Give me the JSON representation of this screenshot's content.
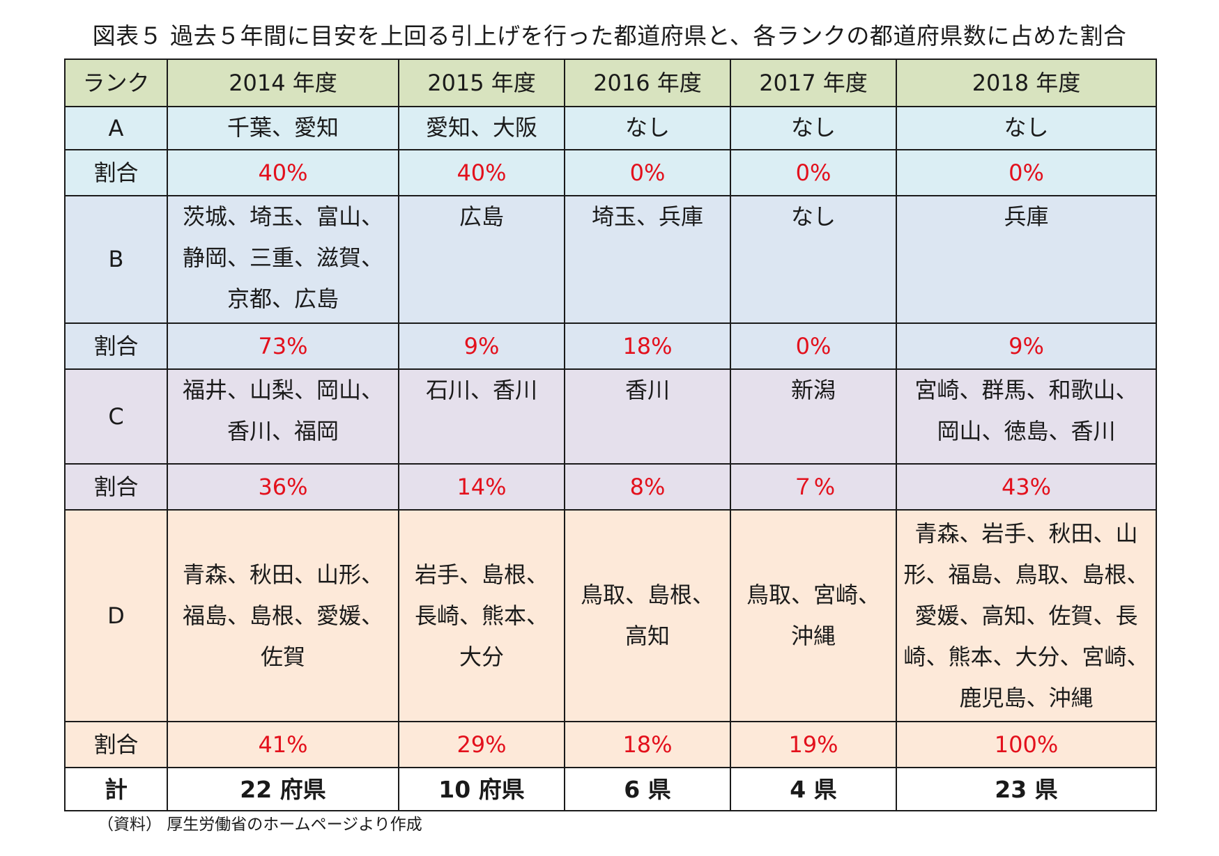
{
  "title": "図表５ 過去５年間に目安を上回る引上げを行った都道府県と、各ランクの都道府県数に占めた割合",
  "table": {
    "header": [
      "ランク",
      "2014 年度",
      "2015 年度",
      "2016 年度",
      "2017 年度",
      "2018 年度"
    ],
    "rows": [
      {
        "rank": "A",
        "names": [
          "千葉、愛知",
          "愛知、大阪",
          "なし",
          "なし",
          "なし"
        ],
        "ratio_label": "割合",
        "ratios": [
          "40%",
          "40%",
          "0%",
          "0%",
          "0%"
        ]
      },
      {
        "rank": "B",
        "names": [
          "茨城、埼玉、富山、\n静岡、三重、滋賀、\n京都、広島",
          "広島",
          "埼玉、兵庫",
          "なし",
          "兵庫"
        ],
        "ratio_label": "割合",
        "ratios": [
          "73%",
          "9%",
          "18%",
          "0%",
          "9%"
        ]
      },
      {
        "rank": "C",
        "names": [
          "福井、山梨、岡山、\n香川、福岡",
          "石川、香川",
          "香川",
          "新潟",
          "宮崎、群馬、和歌山、\n岡山、徳島、香川"
        ],
        "ratio_label": "割合",
        "ratios": [
          "36%",
          "14%",
          "8%",
          "７%",
          "43%"
        ]
      },
      {
        "rank": "D",
        "names": [
          "青森、秋田、山形、\n福島、島根、愛媛、\n佐賀",
          "岩手、島根、\n長崎、熊本、\n大分",
          "鳥取、島根、\n高知",
          "鳥取、宮崎、\n沖縄",
          "青森、岩手、秋田、山\n形、福島、鳥取、島根、\n愛媛、高知、佐賀、長\n崎、熊本、大分、宮崎、\n鹿児島、沖縄"
        ],
        "ratio_label": "割合",
        "ratios": [
          "41%",
          "29%",
          "18%",
          "19%",
          "100%"
        ]
      }
    ],
    "total": {
      "label": "計",
      "values": [
        "22 府県",
        "10 府県",
        "6 県",
        "4 県",
        "23 県"
      ]
    }
  },
  "source": "（資料） 厚生労働省のホームページより作成",
  "colors": {
    "header_bg": "#d8e3bf",
    "rank_a_bg": "#dbeef4",
    "rank_b_bg": "#dce6f2",
    "rank_c_bg": "#e5e0ec",
    "rank_d_bg": "#fde9d9",
    "ratio_text": "#e3101c"
  }
}
